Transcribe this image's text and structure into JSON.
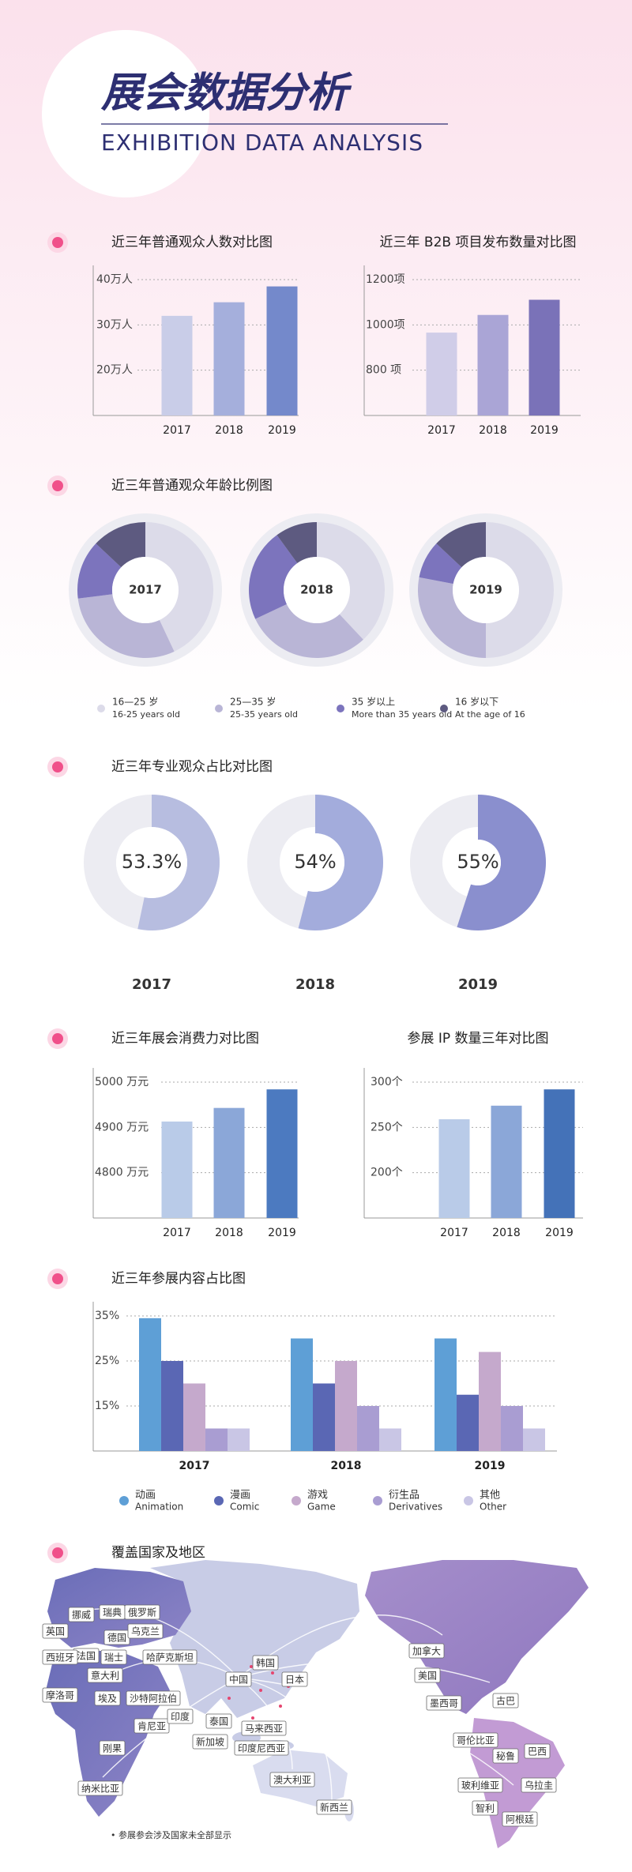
{
  "header": {
    "title": "展会数据分析",
    "subtitle": "EXHIBITION DATA ANALYSIS"
  },
  "chart_data": [
    {
      "type": "bar",
      "title": "近三年普通观众人数对比图",
      "categories": [
        "2017",
        "2018",
        "2019"
      ],
      "values": [
        32,
        35,
        38.5
      ],
      "colors": [
        "#c9cde8",
        "#a5afdc",
        "#7489cb"
      ],
      "ylim": [
        10,
        40
      ],
      "yticks": [
        {
          "value": 20,
          "label": "20万人"
        },
        {
          "value": 30,
          "label": "30万人"
        },
        {
          "value": 40,
          "label": "40万人"
        }
      ],
      "grid": true
    },
    {
      "type": "bar",
      "title": "近三年 B2B 项目发布数量对比图",
      "categories": [
        "2017",
        "2018",
        "2019"
      ],
      "values": [
        966,
        1044,
        1111
      ],
      "colors": [
        "#d0cde8",
        "#aaa5d6",
        "#7a72b8"
      ],
      "ylim": [
        600,
        1200
      ],
      "yticks": [
        {
          "value": 800,
          "label": "800  项"
        },
        {
          "value": 1000,
          "label": "1000项"
        },
        {
          "value": 1200,
          "label": "1200项"
        }
      ],
      "grid": true
    },
    {
      "type": "donut",
      "title": "近三年普通观众年龄比例图",
      "categories": [
        "16—25 岁",
        "25—35 岁",
        "35 岁以上",
        "16 岁以下"
      ],
      "categories_en": [
        "16-25 years old",
        "25-35 years old",
        "More than 35 years old",
        "At the age of 16"
      ],
      "colors": [
        "#dcdbe9",
        "#b9b5d6",
        "#7c74bd",
        "#5d5a80"
      ],
      "series": [
        {
          "name": "2017",
          "values": [
            43,
            30,
            14,
            13
          ]
        },
        {
          "name": "2018",
          "values": [
            38,
            30,
            22,
            10
          ]
        },
        {
          "name": "2019",
          "values": [
            50,
            28,
            9,
            13
          ]
        }
      ]
    },
    {
      "type": "progress",
      "title": "近三年专业观众占比对比图",
      "categories": [
        "2017",
        "2018",
        "2019"
      ],
      "values": [
        53.3,
        54,
        55
      ],
      "value_labels": [
        "53.3%",
        "54%",
        "55%"
      ],
      "colors": [
        "#b7bde0",
        "#a3acdc",
        "#8a8fce"
      ]
    },
    {
      "type": "bar",
      "title": "近三年展会消费力对比图",
      "categories": [
        "2017",
        "2018",
        "2019"
      ],
      "values": [
        4913,
        4943,
        4984
      ],
      "colors": [
        "#b9cbe8",
        "#8ba7d8",
        "#4c7ac0"
      ],
      "ylim": [
        4700,
        5000
      ],
      "yticks": [
        {
          "value": 4800,
          "label": "4800 万元"
        },
        {
          "value": 4900,
          "label": "4900 万元"
        },
        {
          "value": 5000,
          "label": "5000 万元"
        }
      ],
      "grid": true
    },
    {
      "type": "bar",
      "title": "参展 IP 数量三年对比图",
      "categories": [
        "2017",
        "2018",
        "2019"
      ],
      "values": [
        259,
        274,
        292
      ],
      "colors": [
        "#b9cbe8",
        "#8ba7d8",
        "#4472b8"
      ],
      "ylim": [
        150,
        300
      ],
      "yticks": [
        {
          "value": 200,
          "label": "200个"
        },
        {
          "value": 250,
          "label": "250个"
        },
        {
          "value": 300,
          "label": "300个"
        }
      ],
      "grid": true
    },
    {
      "type": "grouped_bar",
      "title": "近三年参展内容占比图",
      "categories": [
        "2017",
        "2018",
        "2019"
      ],
      "ylim": [
        5,
        35
      ],
      "yticks": [
        {
          "value": 15,
          "label": "15%"
        },
        {
          "value": 25,
          "label": "25%"
        },
        {
          "value": 35,
          "label": "35%"
        }
      ],
      "grid": true,
      "series": [
        {
          "name": "动画",
          "name_en": "Animation",
          "color": "#5e9fd6",
          "values": [
            34.5,
            30,
            30
          ]
        },
        {
          "name": "漫画",
          "name_en": "Comic",
          "color": "#5a67b4",
          "values": [
            25,
            20,
            17.5
          ]
        },
        {
          "name": "游戏",
          "name_en": "Game",
          "color": "#c5a9cc",
          "values": [
            20,
            25,
            27
          ]
        },
        {
          "name": "衍生品",
          "name_en": "Derivatives",
          "color": "#a99dd2",
          "values": [
            10,
            15,
            15
          ]
        },
        {
          "name": "其他",
          "name_en": "Other",
          "color": "#c9c6e5",
          "values": [
            10,
            10,
            10
          ]
        }
      ]
    }
  ],
  "map": {
    "title": "覆盖国家及地区",
    "countries": [
      "挪威",
      "瑞典",
      "俄罗斯",
      "英国",
      "法国",
      "德国",
      "乌克兰",
      "西班牙",
      "瑞士",
      "哈萨克斯坦",
      "意大利",
      "摩洛哥",
      "埃及",
      "沙特阿拉伯",
      "肯尼亚",
      "印度",
      "中国",
      "韩国",
      "日本",
      "泰国",
      "新加坡",
      "马来西亚",
      "印度尼西亚",
      "澳大利亚",
      "新西兰",
      "刚果",
      "纳米比亚",
      "加拿大",
      "美国",
      "墨西哥",
      "古巴",
      "哥伦比亚",
      "秘鲁",
      "巴西",
      "玻利维亚",
      "智利",
      "乌拉圭",
      "阿根廷"
    ],
    "footnote": "• 参展参会涉及国家未全部显示"
  }
}
